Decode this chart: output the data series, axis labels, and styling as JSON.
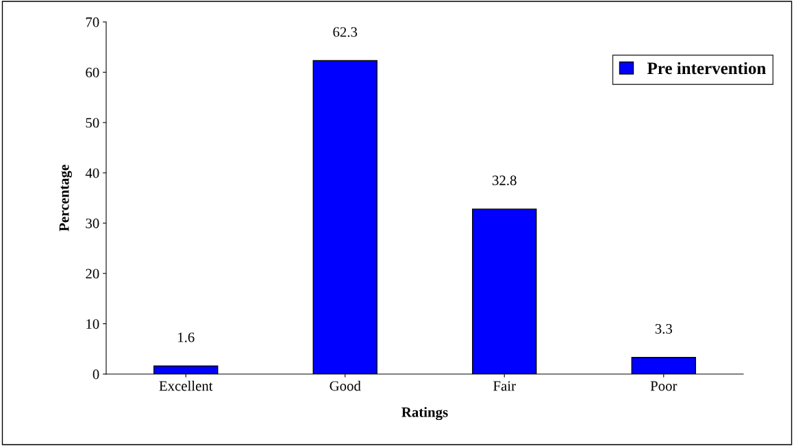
{
  "chart_data": {
    "type": "bar",
    "xlabel": "Ratings",
    "ylabel": "Percentage",
    "categories": [
      "Excellent",
      "Good",
      "Fair",
      "Poor"
    ],
    "series": [
      {
        "name": "Pre intervention",
        "color": "#0000ff",
        "values": [
          1.6,
          62.3,
          32.8,
          3.3
        ]
      }
    ],
    "ylim": [
      0,
      70
    ],
    "yticks": [
      0,
      10,
      20,
      30,
      40,
      50,
      60,
      70
    ],
    "data_labels": true,
    "legend": "top right",
    "grid": false
  }
}
